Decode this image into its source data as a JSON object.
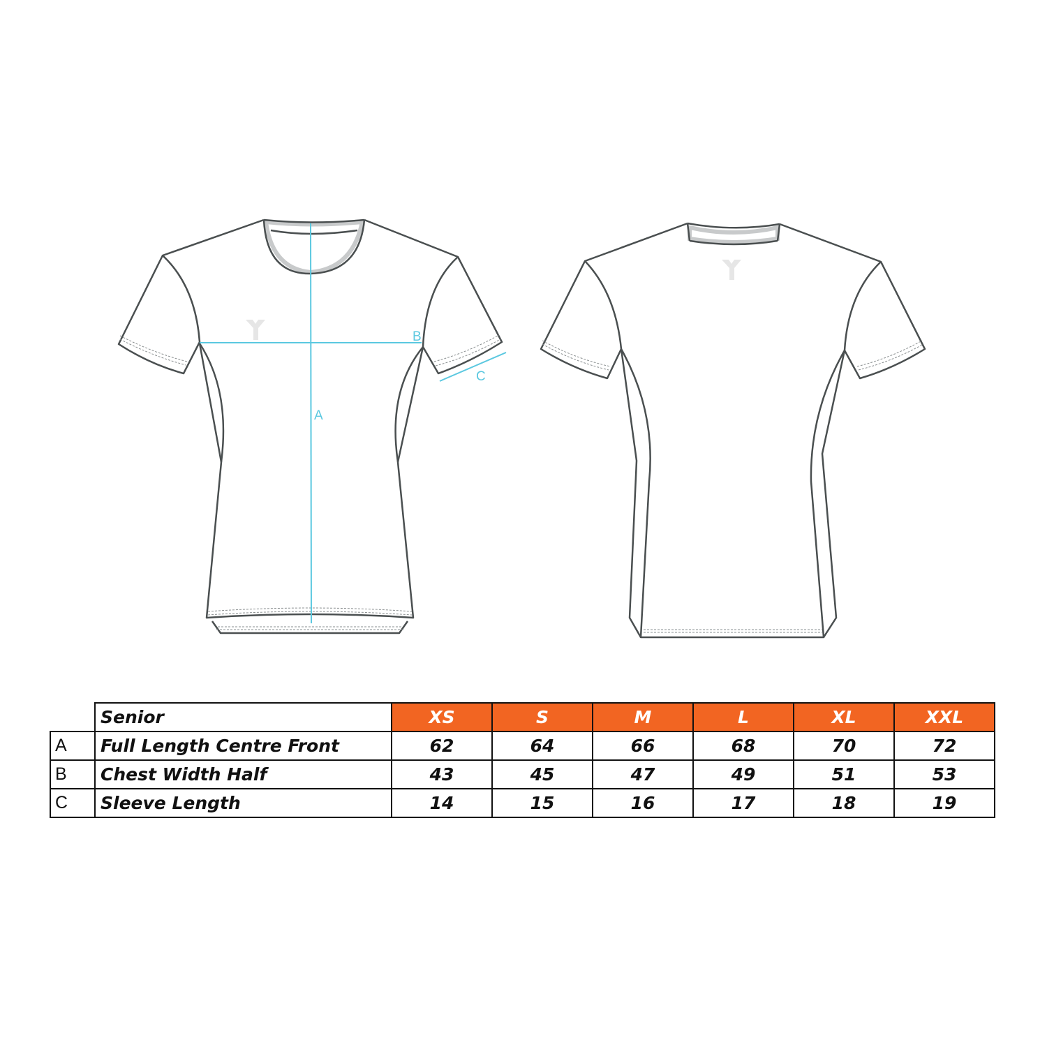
{
  "diagram": {
    "measure_color": "#5bc8e0",
    "accent_color": "#f26522",
    "labels": {
      "a": "A",
      "b": "B",
      "c": "C"
    }
  },
  "table": {
    "title": "Senior",
    "sizes": [
      "XS",
      "S",
      "M",
      "L",
      "XL",
      "XXL"
    ],
    "rows": [
      {
        "key": "A",
        "label": "Full Length Centre Front",
        "values": [
          "62",
          "64",
          "66",
          "68",
          "70",
          "72"
        ]
      },
      {
        "key": "B",
        "label": "Chest Width Half",
        "values": [
          "43",
          "45",
          "47",
          "49",
          "51",
          "53"
        ]
      },
      {
        "key": "C",
        "label": "Sleeve Length",
        "values": [
          "14",
          "15",
          "16",
          "17",
          "18",
          "19"
        ]
      }
    ]
  }
}
